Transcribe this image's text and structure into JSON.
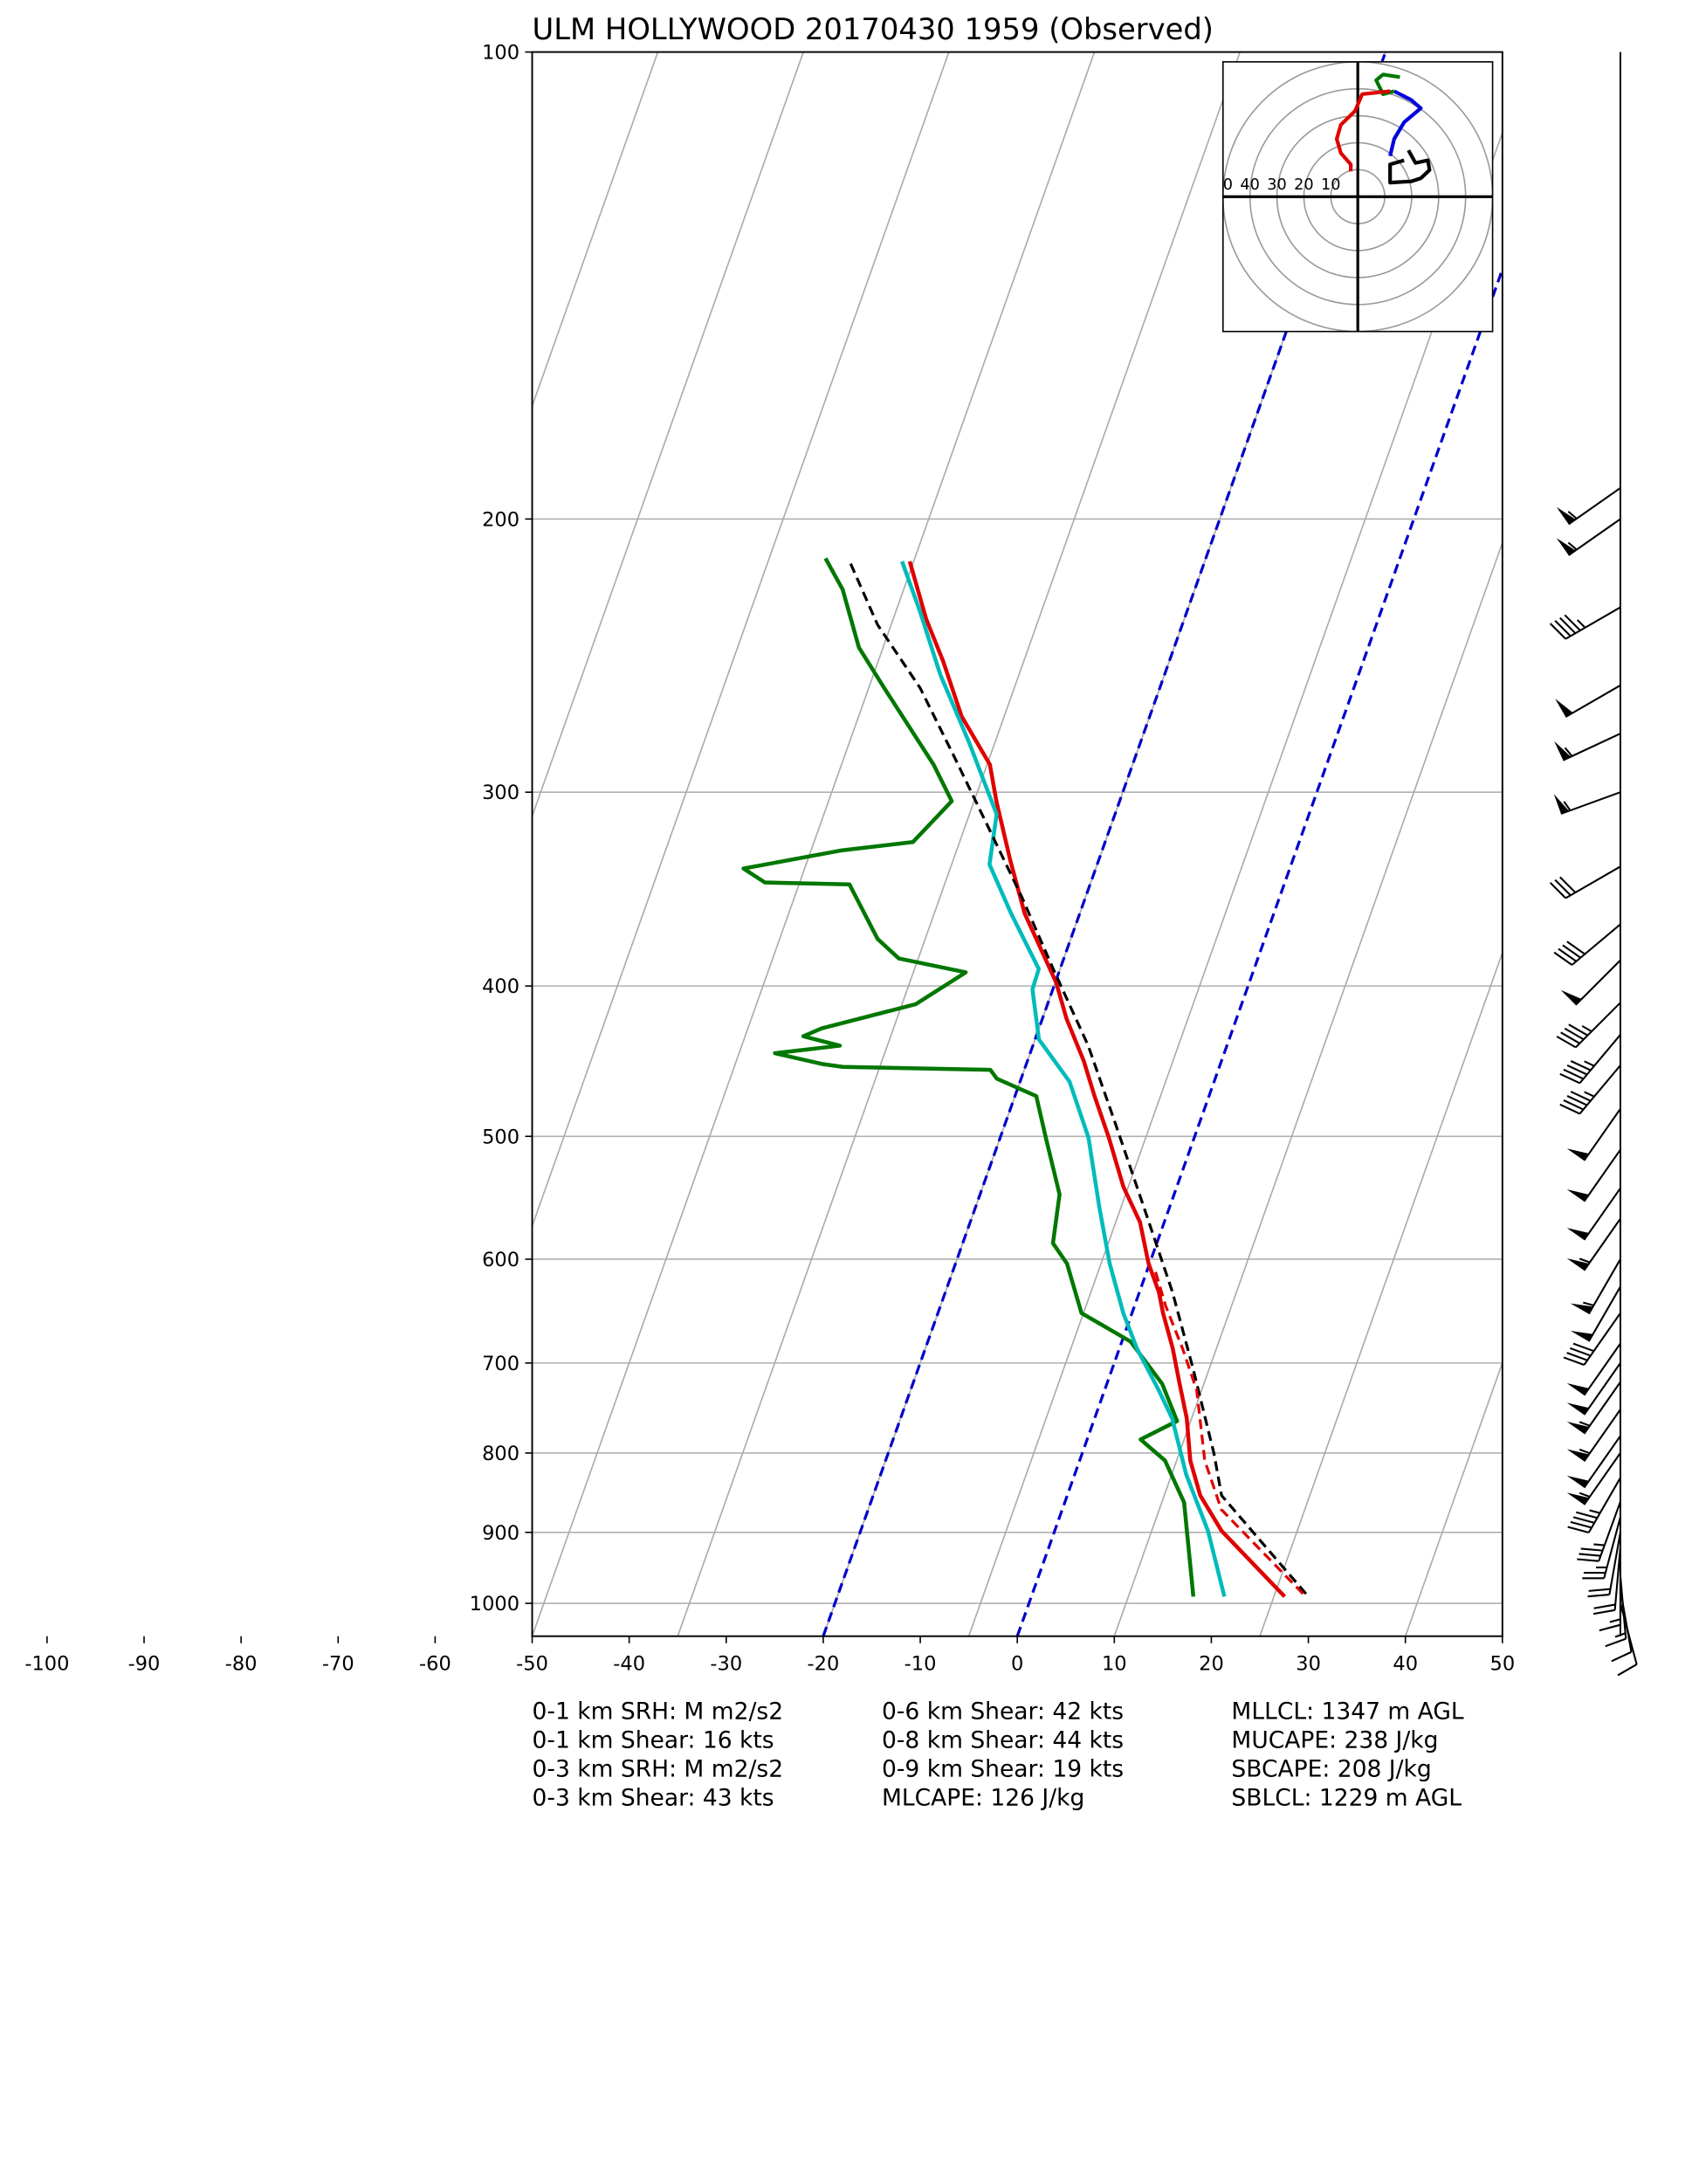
{
  "chart_data": {
    "type": "skewt",
    "title": "ULM HOLLYWOOD 20170430 1959   (Observed)",
    "xlim": [
      -50,
      50
    ],
    "ylim": [
      1050,
      100
    ],
    "log_y": true,
    "grid": true,
    "xticks": [
      -100,
      -90,
      -80,
      -70,
      -60,
      -50,
      -40,
      -30,
      -20,
      -10,
      0,
      10,
      20,
      30,
      40,
      50
    ],
    "yticks": [
      100,
      200,
      300,
      400,
      500,
      600,
      700,
      800,
      900,
      1000
    ],
    "isotherms": [
      -140,
      -125,
      -110,
      -95,
      -80,
      -65,
      -50,
      -35,
      -20,
      -5,
      10,
      25,
      40
    ],
    "isotherm_color": "#aaaaaa",
    "highlight_isotherms": [
      -20,
      0
    ],
    "highlight_color": "#0000cc",
    "series": [
      {
        "color": "#e00000",
        "linestyle": "solid",
        "pressure": [
          990,
          898,
          852,
          809,
          760,
          722,
          685,
          650,
          630,
          604,
          568,
          539,
          501,
          471,
          447,
          420,
          398,
          359,
          332,
          304,
          288,
          268,
          247,
          232,
          213
        ],
        "values": [
          26.1,
          17.2,
          13.7,
          11.4,
          9.5,
          7.5,
          5.5,
          3.2,
          2.0,
          -0.1,
          -2.5,
          -5.5,
          -8.8,
          -11.8,
          -14.2,
          -17.5,
          -19.9,
          -25.7,
          -29.1,
          -32.7,
          -34.7,
          -39.4,
          -43.3,
          -46.6,
          -50.4
        ]
      },
      {
        "color": "#007700",
        "linestyle": "solid",
        "pressure": [
          990,
          861,
          809,
          784,
          763,
          722,
          678,
          650,
          604,
          586,
          545,
          501,
          471,
          459,
          453,
          451,
          449,
          442,
          437,
          431,
          426,
          411,
          392,
          384,
          373,
          348,
          344,
          343,
          336,
          327,
          323,
          304,
          288,
          257,
          242,
          222,
          212
        ],
        "values": [
          16.7,
          12.3,
          8.8,
          5.5,
          8.6,
          5.7,
          0.9,
          -5.2,
          -8.5,
          -10.7,
          -11.8,
          -15.3,
          -17.8,
          -22.5,
          -23.5,
          -38.8,
          -41.1,
          -46.3,
          -39.9,
          -44.0,
          -42.4,
          -33.6,
          -29.6,
          -37.0,
          -39.9,
          -44.1,
          -44.8,
          -53.6,
          -56.3,
          -46.8,
          -39.8,
          -37.3,
          -40.5,
          -48.4,
          -52.5,
          -56.3,
          -59.2
        ]
      },
      {
        "color": "#00bbbb",
        "linestyle": "solid",
        "pressure": [
          990,
          898,
          826,
          760,
          729,
          685,
          650,
          604,
          556,
          501,
          461,
          433,
          402,
          390,
          359,
          334,
          310,
          279,
          252,
          229,
          213
        ],
        "values": [
          19.9,
          15.8,
          11.5,
          8.0,
          5.6,
          1.8,
          -0.9,
          -4.1,
          -7.2,
          -10.9,
          -14.9,
          -19.6,
          -22.1,
          -22.2,
          -27.1,
          -31.1,
          -32.2,
          -37.6,
          -43.1,
          -47.6,
          -51.2
        ]
      },
      {
        "color": "#000000",
        "linestyle": "dashed",
        "pressure": [
          986,
          852,
          801,
          707,
          630,
          556,
          491,
          437,
          390,
          351,
          317,
          285,
          257,
          234,
          213
        ],
        "values": [
          28.2,
          15.9,
          13.6,
          8.4,
          3.4,
          -2.6,
          -8.6,
          -14.3,
          -20.7,
          -26.5,
          -32.4,
          -38.6,
          -44.7,
          -51.4,
          -56.6
        ]
      },
      {
        "color": "#e00000",
        "linestyle": "dashed",
        "pressure": [
          986,
          870,
          809,
          729,
          685,
          643,
          611
        ],
        "values": [
          27.9,
          16.4,
          12.9,
          9.5,
          6.5,
          3.2,
          0.9
        ]
      }
    ],
    "wind": {
      "pressure": [
        191,
        200,
        228,
        256,
        275,
        300,
        335,
        365,
        385,
        410,
        430,
        450,
        480,
        510,
        540,
        565,
        600,
        625,
        650,
        680,
        700,
        720,
        750,
        780,
        800,
        830,
        860,
        880,
        900,
        920,
        940,
        960,
        980,
        1000
      ],
      "speed": [
        55,
        55,
        45,
        50,
        55,
        55,
        30,
        40,
        50,
        45,
        45,
        45,
        50,
        50,
        50,
        55,
        55,
        50,
        40,
        50,
        50,
        55,
        55,
        50,
        55,
        45,
        35,
        25,
        20,
        20,
        15,
        15,
        10,
        10
      ],
      "direction": [
        235,
        235,
        240,
        240,
        245,
        250,
        240,
        230,
        225,
        225,
        220,
        220,
        215,
        215,
        215,
        215,
        210,
        210,
        215,
        215,
        215,
        215,
        215,
        215,
        215,
        210,
        200,
        195,
        190,
        185,
        180,
        175,
        170,
        165
      ]
    },
    "hodograph": {
      "lim": [
        -50,
        50
      ],
      "rings": [
        10,
        20,
        30,
        40,
        50
      ],
      "series": [
        {
          "color": "#000000",
          "u": [
            18.8,
            21.4,
            26.0,
            26.6,
            23.4,
            19.8,
            12.0,
            12.0,
            17.2
          ],
          "v": [
            17.2,
            12.5,
            13.5,
            9.9,
            6.8,
            5.7,
            5.2,
            12.0,
            13.5
          ]
        },
        {
          "color": "#0000dd",
          "u": [
            12.0,
            13.5,
            17.2,
            23.4,
            19.8,
            13.5
          ],
          "v": [
            15.1,
            21.4,
            27.6,
            32.8,
            35.9,
            39.1
          ]
        },
        {
          "color": "#007700",
          "u": [
            13.5,
            9.4,
            6.8,
            9.4,
            15.6
          ],
          "v": [
            39.1,
            38.0,
            43.2,
            45.3,
            44.3
          ]
        },
        {
          "color": "#e00000",
          "u": [
            12.0,
            1.6,
            -1.0,
            -6.3,
            -7.8,
            -6.3,
            -2.6,
            -2.6
          ],
          "v": [
            39.1,
            38.0,
            31.8,
            26.6,
            21.4,
            16.2,
            12.0,
            9.4
          ]
        }
      ]
    },
    "stats": [
      [
        "0-1 km SRH: M m2/s2",
        "0-1 km Shear: 16 kts",
        "0-3 km SRH: M m2/s2",
        "0-3 km Shear: 43 kts"
      ],
      [
        "0-6 km Shear: 42 kts",
        "0-8 km Shear: 44 kts",
        "0-9 km Shear: 19 kts",
        "MLCAPE: 126 J/kg"
      ],
      [
        "MLLCL: 1347 m AGL",
        "MUCAPE: 238 J/kg",
        "SBCAPE: 208 J/kg",
        "SBLCL: 1229 m AGL"
      ]
    ]
  }
}
